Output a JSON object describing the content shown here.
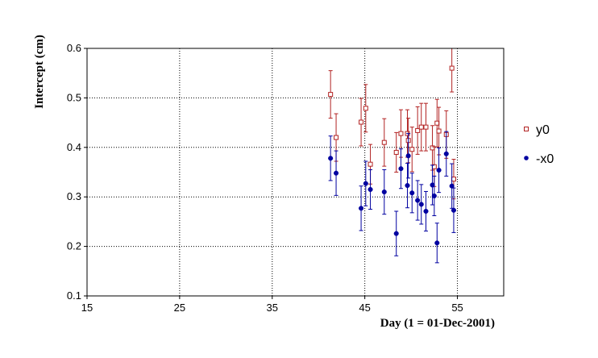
{
  "chart_data": {
    "type": "scatter",
    "xlabel": "Day (1 = 01-Dec-2001)",
    "ylabel": "Intercept (cm)",
    "xlim": [
      15,
      60
    ],
    "ylim": [
      0.1,
      0.6
    ],
    "xticks": [
      15,
      25,
      35,
      45,
      55
    ],
    "yticks": [
      0.1,
      0.2,
      0.3,
      0.4,
      0.5,
      0.6
    ],
    "grid": true,
    "legend_position": "right",
    "series": [
      {
        "name": "y0",
        "marker": "open-square",
        "color": "#b22222",
        "points": [
          {
            "x": 41.3,
            "y": 0.507,
            "err": 0.048
          },
          {
            "x": 41.9,
            "y": 0.42,
            "err": 0.048
          },
          {
            "x": 44.6,
            "y": 0.451,
            "err": 0.048
          },
          {
            "x": 45.1,
            "y": 0.479,
            "err": 0.048
          },
          {
            "x": 45.6,
            "y": 0.366,
            "err": 0.04
          },
          {
            "x": 47.1,
            "y": 0.41,
            "err": 0.048
          },
          {
            "x": 48.4,
            "y": 0.39,
            "err": 0.04
          },
          {
            "x": 48.9,
            "y": 0.428,
            "err": 0.048
          },
          {
            "x": 49.6,
            "y": 0.428,
            "err": 0.048
          },
          {
            "x": 49.7,
            "y": 0.414,
            "err": 0.045
          },
          {
            "x": 50.1,
            "y": 0.396,
            "err": 0.045
          },
          {
            "x": 50.7,
            "y": 0.434,
            "err": 0.048
          },
          {
            "x": 51.1,
            "y": 0.441,
            "err": 0.048
          },
          {
            "x": 51.6,
            "y": 0.441,
            "err": 0.048
          },
          {
            "x": 52.3,
            "y": 0.399,
            "err": 0.045
          },
          {
            "x": 52.5,
            "y": 0.361,
            "err": 0.04
          },
          {
            "x": 52.8,
            "y": 0.449,
            "err": 0.048
          },
          {
            "x": 53.0,
            "y": 0.433,
            "err": 0.048
          },
          {
            "x": 53.8,
            "y": 0.426,
            "err": 0.048
          },
          {
            "x": 54.4,
            "y": 0.56,
            "err": 0.048
          },
          {
            "x": 54.6,
            "y": 0.336,
            "err": 0.04
          }
        ]
      },
      {
        "name": "-x0",
        "marker": "filled-circle",
        "color": "#0000a0",
        "points": [
          {
            "x": 41.3,
            "y": 0.378,
            "err": 0.045
          },
          {
            "x": 41.9,
            "y": 0.348,
            "err": 0.045
          },
          {
            "x": 44.6,
            "y": 0.277,
            "err": 0.045
          },
          {
            "x": 45.1,
            "y": 0.327,
            "err": 0.045
          },
          {
            "x": 45.6,
            "y": 0.315,
            "err": 0.04
          },
          {
            "x": 47.1,
            "y": 0.31,
            "err": 0.045
          },
          {
            "x": 48.4,
            "y": 0.226,
            "err": 0.045
          },
          {
            "x": 48.9,
            "y": 0.357,
            "err": 0.04
          },
          {
            "x": 49.6,
            "y": 0.323,
            "err": 0.045
          },
          {
            "x": 49.7,
            "y": 0.383,
            "err": 0.045
          },
          {
            "x": 50.1,
            "y": 0.308,
            "err": 0.04
          },
          {
            "x": 50.7,
            "y": 0.293,
            "err": 0.04
          },
          {
            "x": 51.1,
            "y": 0.285,
            "err": 0.04
          },
          {
            "x": 51.6,
            "y": 0.271,
            "err": 0.04
          },
          {
            "x": 52.3,
            "y": 0.324,
            "err": 0.04
          },
          {
            "x": 52.5,
            "y": 0.302,
            "err": 0.04
          },
          {
            "x": 52.8,
            "y": 0.207,
            "err": 0.04
          },
          {
            "x": 53.0,
            "y": 0.354,
            "err": 0.045
          },
          {
            "x": 53.8,
            "y": 0.387,
            "err": 0.045
          },
          {
            "x": 54.4,
            "y": 0.322,
            "err": 0.045
          },
          {
            "x": 54.6,
            "y": 0.273,
            "err": 0.045
          }
        ]
      }
    ]
  }
}
